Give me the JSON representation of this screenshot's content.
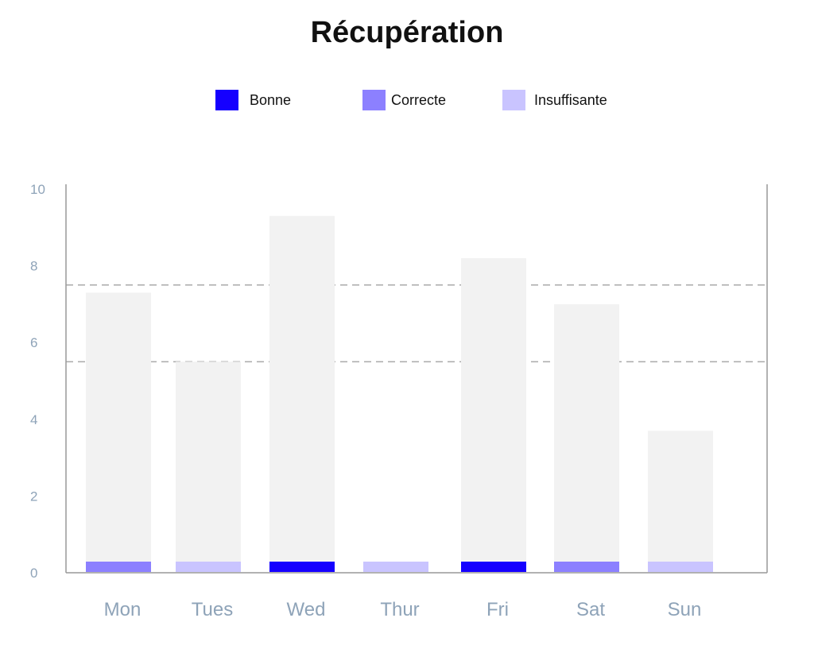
{
  "chart_data": {
    "type": "bar",
    "title": "Récupération",
    "categories": [
      "Mon",
      "Tues",
      "Wed",
      "Thur",
      "Fri",
      "Sat",
      "Sun"
    ],
    "values": [
      7.3,
      5.5,
      9.3,
      0,
      8.2,
      7.0,
      3.7
    ],
    "base_categories": [
      "Correcte",
      "Insuffisante",
      "Bonne",
      "Insuffisante",
      "Bonne",
      "Correcte",
      "Insuffisante"
    ],
    "legend": [
      {
        "name": "Bonne",
        "color": "#1500ff"
      },
      {
        "name": "Correcte",
        "color": "#8c80ff"
      },
      {
        "name": "Insuffisante",
        "color": "#c9c4ff"
      }
    ],
    "bar_color": "#f2f2f2",
    "reference_lines": [
      7.5,
      5.5
    ],
    "ylim": [
      0,
      10
    ],
    "yticks": [
      0,
      2,
      4,
      6,
      8,
      10
    ],
    "grid": false,
    "legend_position": "top"
  }
}
